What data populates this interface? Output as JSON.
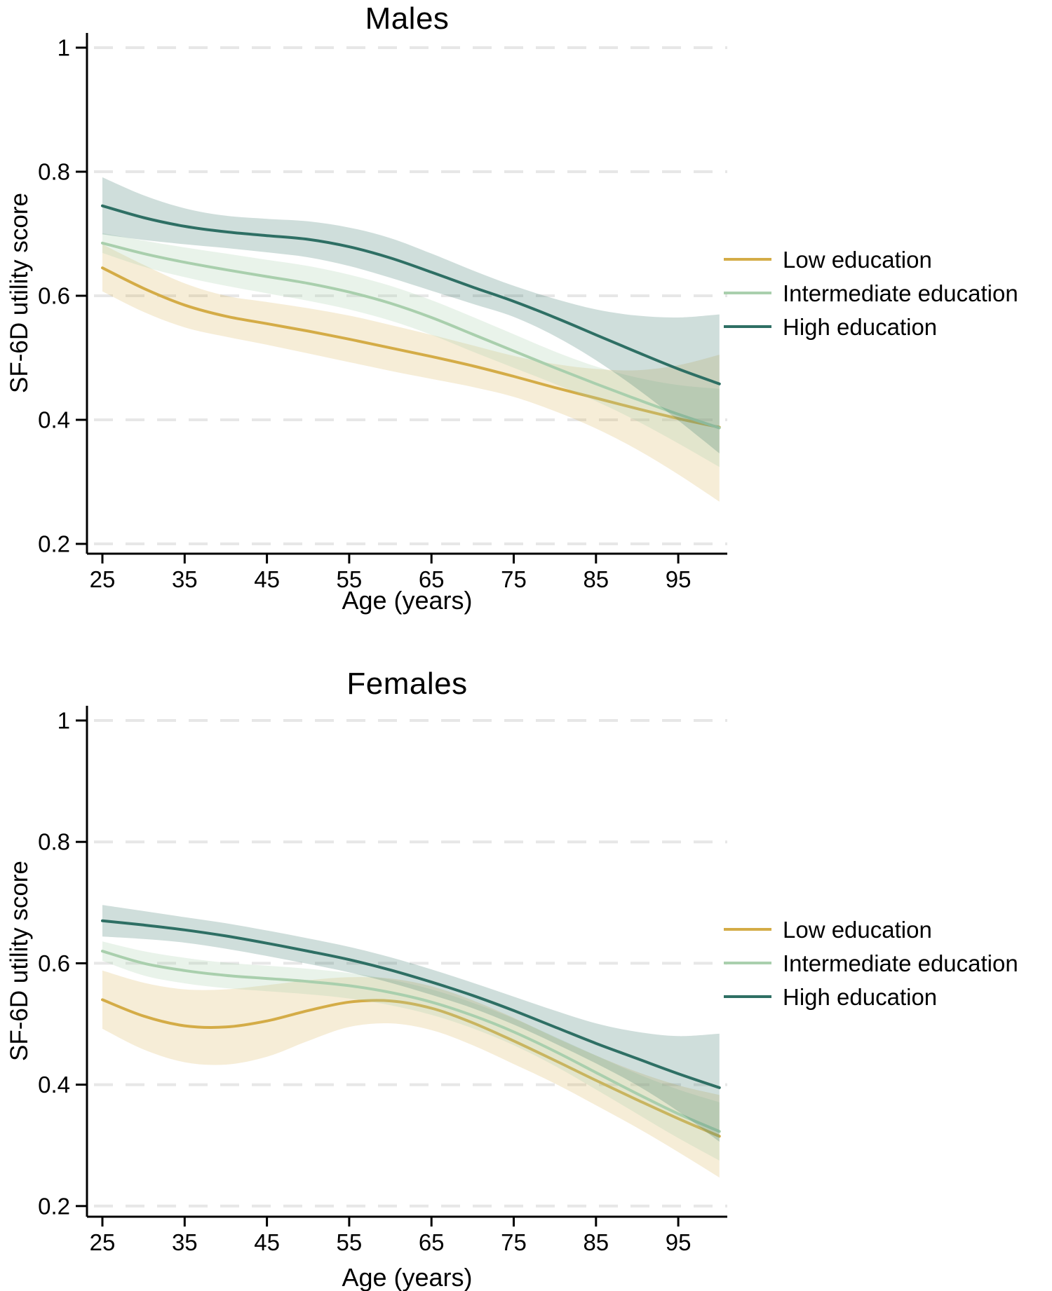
{
  "figure": {
    "background": "#ffffff"
  },
  "legend": {
    "items": [
      {
        "label": "Low education",
        "color": "#d4ac47"
      },
      {
        "label": "Intermediate education",
        "color": "#a9cfad"
      },
      {
        "label": "High education",
        "color": "#2e6f64"
      }
    ]
  },
  "chart_data": [
    {
      "type": "line",
      "title": "Males",
      "xlabel": "Age (years)",
      "ylabel": "SF-6D utility score",
      "x": [
        25,
        30,
        35,
        40,
        45,
        50,
        55,
        60,
        65,
        70,
        75,
        80,
        85,
        90,
        95,
        100
      ],
      "xticks": [
        25,
        35,
        45,
        55,
        65,
        75,
        85,
        95
      ],
      "yticks": [
        1,
        0.8,
        0.6,
        0.4,
        0.2
      ],
      "xlim": [
        25,
        100
      ],
      "ylim": [
        0.2,
        1.0
      ],
      "grid": "horizontal-dashed-light-gray",
      "legend_position": "right",
      "series": [
        {
          "name": "Low education",
          "color": "#d4ac47",
          "band_opacity": 0.22,
          "values": [
            0.645,
            0.612,
            0.585,
            0.567,
            0.555,
            0.543,
            0.53,
            0.516,
            0.502,
            0.487,
            0.47,
            0.452,
            0.435,
            0.418,
            0.402,
            0.388
          ],
          "ci_upper": [
            0.683,
            0.65,
            0.62,
            0.6,
            0.59,
            0.58,
            0.568,
            0.553,
            0.537,
            0.52,
            0.503,
            0.49,
            0.482,
            0.48,
            0.488,
            0.505
          ],
          "ci_lower": [
            0.607,
            0.574,
            0.549,
            0.534,
            0.521,
            0.507,
            0.493,
            0.479,
            0.466,
            0.453,
            0.437,
            0.414,
            0.386,
            0.352,
            0.312,
            0.268
          ]
        },
        {
          "name": "Intermediate education",
          "color": "#a9cfad",
          "band_opacity": 0.25,
          "values": [
            0.685,
            0.668,
            0.654,
            0.642,
            0.631,
            0.62,
            0.606,
            0.588,
            0.565,
            0.538,
            0.511,
            0.484,
            0.458,
            0.433,
            0.409,
            0.387
          ],
          "ci_upper": [
            0.701,
            0.689,
            0.678,
            0.668,
            0.658,
            0.648,
            0.634,
            0.616,
            0.593,
            0.566,
            0.538,
            0.51,
            0.486,
            0.468,
            0.456,
            0.45
          ],
          "ci_lower": [
            0.669,
            0.647,
            0.63,
            0.616,
            0.604,
            0.592,
            0.578,
            0.56,
            0.537,
            0.51,
            0.484,
            0.458,
            0.43,
            0.398,
            0.362,
            0.324
          ]
        },
        {
          "name": "High education",
          "color": "#2e6f64",
          "band_opacity": 0.23,
          "values": [
            0.745,
            0.726,
            0.712,
            0.703,
            0.697,
            0.691,
            0.679,
            0.661,
            0.638,
            0.614,
            0.591,
            0.565,
            0.537,
            0.509,
            0.482,
            0.458
          ],
          "ci_upper": [
            0.791,
            0.762,
            0.741,
            0.729,
            0.724,
            0.72,
            0.71,
            0.693,
            0.668,
            0.641,
            0.616,
            0.595,
            0.578,
            0.568,
            0.565,
            0.57
          ],
          "ci_lower": [
            0.699,
            0.69,
            0.683,
            0.677,
            0.67,
            0.662,
            0.648,
            0.629,
            0.608,
            0.587,
            0.566,
            0.535,
            0.496,
            0.45,
            0.399,
            0.346
          ]
        }
      ]
    },
    {
      "type": "line",
      "title": "Females",
      "xlabel": "Age (years)",
      "ylabel": "SF-6D utility score",
      "x": [
        25,
        30,
        35,
        40,
        45,
        50,
        55,
        60,
        65,
        70,
        75,
        80,
        85,
        90,
        95,
        100
      ],
      "xticks": [
        25,
        35,
        45,
        55,
        65,
        75,
        85,
        95
      ],
      "yticks": [
        1,
        0.8,
        0.6,
        0.4,
        0.2
      ],
      "xlim": [
        25,
        100
      ],
      "ylim": [
        0.2,
        1.0
      ],
      "grid": "horizontal-dashed-light-gray",
      "legend_position": "right",
      "series": [
        {
          "name": "Low education",
          "color": "#d4ac47",
          "band_opacity": 0.22,
          "values": [
            0.54,
            0.513,
            0.497,
            0.495,
            0.505,
            0.522,
            0.536,
            0.538,
            0.526,
            0.502,
            0.472,
            0.44,
            0.407,
            0.375,
            0.344,
            0.315
          ],
          "ci_upper": [
            0.588,
            0.568,
            0.557,
            0.557,
            0.564,
            0.572,
            0.577,
            0.575,
            0.562,
            0.539,
            0.51,
            0.478,
            0.448,
            0.421,
            0.399,
            0.383
          ],
          "ci_lower": [
            0.492,
            0.458,
            0.437,
            0.433,
            0.446,
            0.472,
            0.495,
            0.501,
            0.49,
            0.465,
            0.434,
            0.402,
            0.366,
            0.329,
            0.289,
            0.247
          ]
        },
        {
          "name": "Intermediate education",
          "color": "#a9cfad",
          "band_opacity": 0.25,
          "values": [
            0.62,
            0.6,
            0.588,
            0.58,
            0.575,
            0.57,
            0.563,
            0.552,
            0.536,
            0.514,
            0.487,
            0.455,
            0.42,
            0.385,
            0.352,
            0.323
          ],
          "ci_upper": [
            0.636,
            0.62,
            0.609,
            0.601,
            0.596,
            0.591,
            0.584,
            0.573,
            0.557,
            0.535,
            0.509,
            0.479,
            0.448,
            0.418,
            0.392,
            0.371
          ],
          "ci_lower": [
            0.604,
            0.58,
            0.567,
            0.559,
            0.554,
            0.549,
            0.542,
            0.531,
            0.515,
            0.493,
            0.465,
            0.431,
            0.392,
            0.352,
            0.312,
            0.275
          ]
        },
        {
          "name": "High education",
          "color": "#2e6f64",
          "band_opacity": 0.23,
          "values": [
            0.67,
            0.663,
            0.655,
            0.645,
            0.633,
            0.62,
            0.606,
            0.589,
            0.569,
            0.547,
            0.522,
            0.495,
            0.468,
            0.443,
            0.418,
            0.395
          ],
          "ci_upper": [
            0.696,
            0.686,
            0.676,
            0.666,
            0.654,
            0.641,
            0.627,
            0.61,
            0.59,
            0.568,
            0.545,
            0.522,
            0.501,
            0.487,
            0.48,
            0.484
          ],
          "ci_lower": [
            0.644,
            0.64,
            0.634,
            0.624,
            0.612,
            0.599,
            0.585,
            0.568,
            0.548,
            0.526,
            0.499,
            0.468,
            0.435,
            0.399,
            0.356,
            0.306
          ]
        }
      ]
    }
  ]
}
